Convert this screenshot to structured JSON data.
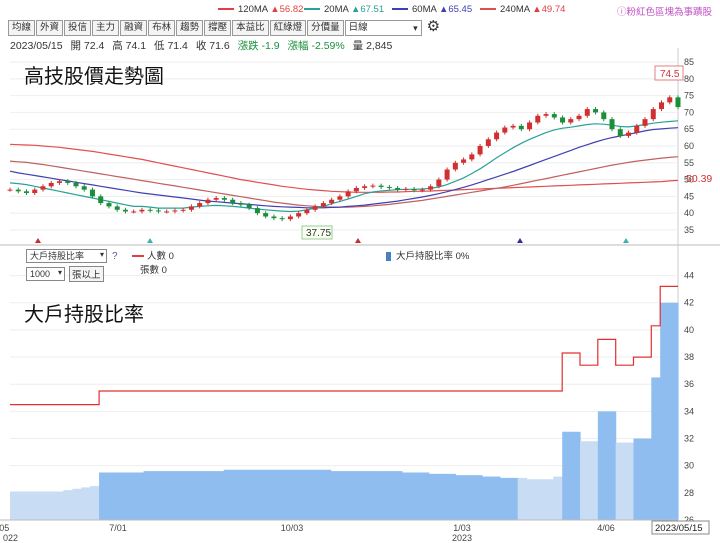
{
  "legend": {
    "ma120": {
      "label": "120MA",
      "value": "▲56.82",
      "color": "#e04040"
    },
    "ma20": {
      "label": "20MA",
      "value": "▲67.51",
      "color": "#2aa198"
    },
    "ma60": {
      "label": "60MA",
      "value": "▲65.45",
      "color": "#4040b0"
    },
    "ma240": {
      "label": "240MA",
      "value": "▲49.74",
      "color": "#e05050"
    },
    "note": "ⓘ粉紅色區塊為事蹟股"
  },
  "toolbar": {
    "buttons": [
      "均線",
      "外資",
      "投信",
      "主力",
      "融資",
      "布林",
      "趨勢",
      "撐壓",
      "本益比",
      "紅綠燈",
      "分價量"
    ],
    "period": "日線"
  },
  "ohlc": {
    "date": "2023/05/15",
    "open": "開 72.4",
    "high": "高 74.1",
    "low": "低 71.4",
    "close": "收 71.6",
    "change": "漲跌 -1.9",
    "pct": "漲幅 -2.59%",
    "volume": "量 2,845"
  },
  "titles": {
    "upper": "高技股價走勢圖",
    "lower": "大戶持股比率"
  },
  "lower_controls": {
    "indicator": "大戶持股比率",
    "lots": "1000",
    "lots_suffix": "張以上",
    "help": "?"
  },
  "lower_legend": {
    "people": "人數 0",
    "lots": "張數 0",
    "pct": "大戶持股比率 0%"
  },
  "chart_data": [
    {
      "type": "line",
      "title": "高技股價走勢圖",
      "ylim": [
        32,
        88
      ],
      "yticks": [
        35,
        40,
        45,
        50,
        55,
        60,
        65,
        70,
        75,
        80,
        85
      ],
      "close": [
        47,
        46.5,
        46,
        47,
        48,
        49,
        49.5,
        49,
        48,
        47,
        45,
        43,
        42,
        41,
        40.5,
        40.5,
        41,
        40.8,
        40.5,
        40.5,
        40.8,
        41,
        42,
        43,
        44,
        44.5,
        44,
        43,
        42.5,
        41.5,
        40,
        39,
        38.5,
        38.2,
        39,
        40,
        41,
        42,
        43,
        44,
        45,
        46.5,
        47.5,
        48,
        48.2,
        47.8,
        47.5,
        47,
        47.2,
        46.8,
        47,
        48,
        50,
        53,
        55,
        56,
        57.5,
        60,
        62,
        64,
        65.5,
        66,
        65,
        67,
        69,
        69.5,
        68.5,
        67,
        68,
        69,
        71,
        70,
        68,
        65,
        63,
        64,
        66,
        68,
        71,
        73,
        74.5,
        71.6
      ],
      "ma20": [
        49,
        48.8,
        48.5,
        48,
        47.5,
        47,
        46.5,
        46,
        45.5,
        45,
        44.5,
        44,
        43.5,
        43,
        42.5,
        42,
        42,
        41.8,
        41.5,
        41.5,
        41.5,
        41.5,
        41.8,
        42,
        42.2,
        42.3,
        42.2,
        42,
        41.8,
        41.5,
        41.2,
        41,
        40.8,
        40.6,
        40.5,
        40.6,
        41,
        41.5,
        42,
        42.8,
        43.5,
        44.2,
        45,
        45.8,
        46.3,
        46.6,
        46.8,
        47,
        47.1,
        47.1,
        47.2,
        47.4,
        47.8,
        48.5,
        49.5,
        50.5,
        51.8,
        53.2,
        54.8,
        56.5,
        58,
        59.5,
        60.8,
        62,
        63,
        64,
        64.8,
        65.3,
        65.6,
        66,
        66.4,
        66.6,
        66.5,
        66.2,
        65.8,
        65.7,
        66,
        66.4,
        66.8,
        67.1,
        67.3,
        67.51
      ],
      "ma60": [
        52.5,
        52,
        51.6,
        51.2,
        50.8,
        50.4,
        50,
        49.6,
        49.2,
        48.8,
        48.4,
        48,
        47.6,
        47.2,
        46.8,
        46.4,
        46,
        45.7,
        45.4,
        45.1,
        44.8,
        44.5,
        44.2,
        43.9,
        43.6,
        43.4,
        43.2,
        43,
        42.8,
        42.6,
        42.4,
        42.2,
        42,
        41.9,
        41.8,
        41.7,
        41.6,
        41.6,
        41.6,
        41.7,
        41.8,
        42,
        42.2,
        42.4,
        42.7,
        43,
        43.3,
        43.6,
        44,
        44.4,
        44.8,
        45.3,
        45.8,
        46.4,
        47,
        47.7,
        48.4,
        49.2,
        50,
        50.8,
        51.6,
        52.4,
        53.3,
        54.2,
        55.1,
        56,
        56.9,
        57.8,
        58.7,
        59.6,
        60.4,
        61.2,
        61.9,
        62.5,
        63,
        63.5,
        64,
        64.5,
        64.9,
        65.1,
        65.3,
        65.45
      ],
      "ma120": [
        55.5,
        55.3,
        55.1,
        54.8,
        54.5,
        54.1,
        53.7,
        53.3,
        52.9,
        52.5,
        52.1,
        51.7,
        51.3,
        50.9,
        50.5,
        50.1,
        49.7,
        49.3,
        48.9,
        48.5,
        48.1,
        47.7,
        47.3,
        46.9,
        46.5,
        46.1,
        45.7,
        45.3,
        44.9,
        44.5,
        44.1,
        43.7,
        43.3,
        43,
        42.7,
        42.4,
        42.2,
        42,
        41.9,
        41.8,
        41.8,
        41.8,
        41.9,
        42,
        42.2,
        42.4,
        42.6,
        42.9,
        43.2,
        43.5,
        43.8,
        44.2,
        44.6,
        45,
        45.4,
        45.8,
        46.2,
        46.6,
        47,
        47.4,
        47.8,
        48.3,
        48.8,
        49.3,
        49.8,
        50.3,
        50.8,
        51.3,
        51.8,
        52.3,
        52.8,
        53.3,
        53.8,
        54.3,
        54.7,
        55.1,
        55.5,
        55.8,
        56.1,
        56.4,
        56.6,
        56.82
      ],
      "ma240": [
        60.5,
        60.4,
        60.3,
        60.2,
        60,
        59.8,
        59.6,
        59.3,
        59,
        58.7,
        58.4,
        58,
        57.6,
        57.2,
        56.8,
        56.4,
        56,
        55.5,
        55,
        54.5,
        54,
        53.5,
        53,
        52.5,
        52,
        51.5,
        51,
        50.5,
        50,
        49.6,
        49.2,
        48.8,
        48.4,
        48,
        47.7,
        47.4,
        47.1,
        46.9,
        46.7,
        46.5,
        46.4,
        46.3,
        46.2,
        46.2,
        46.2,
        46.2,
        46.3,
        46.3,
        46.4,
        46.5,
        46.5,
        46.6,
        46.7,
        46.8,
        46.9,
        47,
        47.1,
        47.2,
        47.3,
        47.4,
        47.5,
        47.6,
        47.7,
        47.8,
        47.9,
        48,
        48.1,
        48.2,
        48.3,
        48.4,
        48.5,
        48.6,
        48.7,
        48.8,
        48.9,
        49,
        49.1,
        49.2,
        49.3,
        49.4,
        49.6,
        49.74
      ],
      "ma240_label": "50.39",
      "high_label": "74.5",
      "low_label": "37.75"
    },
    {
      "type": "area",
      "title": "大戶持股比率",
      "ylim": [
        26,
        45
      ],
      "yticks": [
        26,
        28,
        30,
        32,
        34,
        36,
        38,
        40,
        42,
        44
      ],
      "x": [
        "2022/05",
        "7/01",
        "10/03",
        "1/03 2023",
        "4/06",
        "2023/05/15"
      ],
      "holding_pct": [
        28.1,
        28.1,
        28.1,
        28.1,
        28.1,
        28.1,
        28.2,
        28.3,
        28.4,
        28.5,
        29.5,
        29.5,
        29.5,
        29.5,
        29.5,
        29.6,
        29.6,
        29.6,
        29.6,
        29.6,
        29.6,
        29.6,
        29.6,
        29.6,
        29.7,
        29.7,
        29.7,
        29.7,
        29.7,
        29.7,
        29.7,
        29.7,
        29.7,
        29.7,
        29.7,
        29.7,
        29.6,
        29.6,
        29.6,
        29.6,
        29.6,
        29.6,
        29.6,
        29.6,
        29.5,
        29.5,
        29.5,
        29.4,
        29.4,
        29.4,
        29.3,
        29.3,
        29.3,
        29.2,
        29.2,
        29.1,
        29.1,
        29.1,
        29.0,
        29.0,
        29.0,
        29.2,
        32.5,
        32.5,
        31.8,
        31.8,
        34.0,
        34.0,
        31.7,
        31.7,
        32.0,
        32.0,
        36.5,
        42.0,
        42.0
      ],
      "people_line": [
        34.5,
        34.5,
        34.5,
        34.5,
        34.5,
        34.5,
        34.5,
        34.5,
        34.5,
        34.5,
        35.5,
        35.5,
        35.5,
        35.5,
        35.5,
        35.5,
        35.5,
        35.5,
        35.5,
        35.5,
        35.5,
        35.5,
        35.5,
        35.5,
        35.5,
        35.5,
        35.5,
        35.5,
        35.5,
        35.5,
        35.5,
        35.5,
        35.5,
        35.5,
        35.5,
        35.5,
        35.5,
        35.5,
        35.5,
        35.5,
        35.5,
        35.5,
        35.5,
        35.5,
        35.5,
        35.5,
        35.5,
        35.5,
        35.5,
        35.5,
        35.5,
        35.5,
        35.5,
        35.5,
        35.5,
        35.5,
        35.5,
        35.5,
        35.5,
        35.5,
        35.5,
        35.5,
        38.3,
        38.3,
        37.4,
        37.4,
        39.3,
        39.3,
        37.4,
        37.4,
        38.0,
        38.0,
        40.3,
        43.2,
        43.2
      ]
    }
  ]
}
